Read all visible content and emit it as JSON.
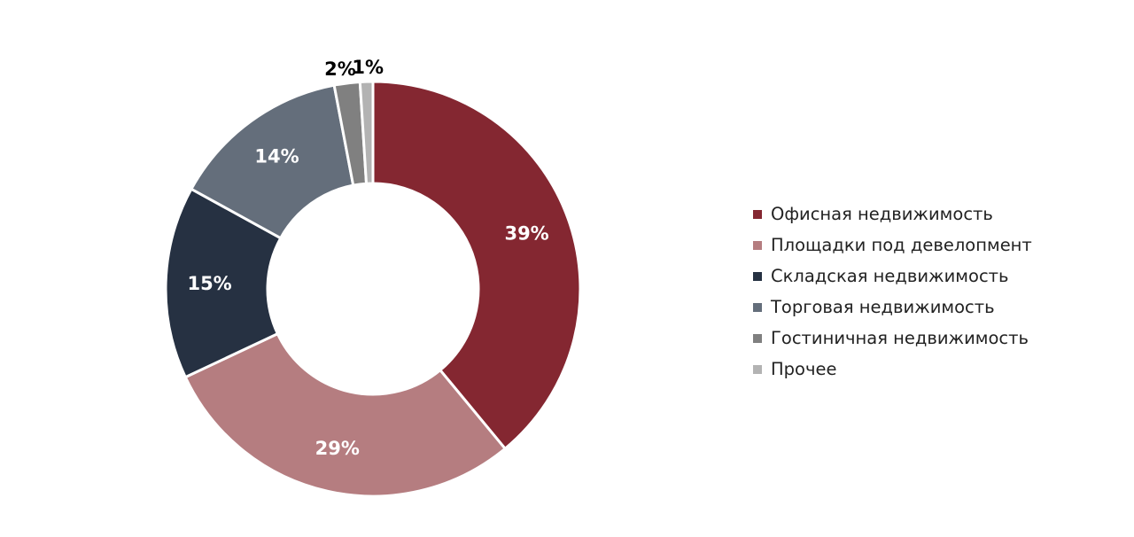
{
  "chart_data": {
    "type": "pie",
    "donut": true,
    "legend_position": "right",
    "slices": [
      {
        "label": "Офисная недвижимость",
        "value": 39,
        "value_label": "39%",
        "color": "#842731"
      },
      {
        "label": "Площадки под девелопмент",
        "value": 29,
        "value_label": "29%",
        "color": "#b57d80"
      },
      {
        "label": "Складская недвижимость",
        "value": 15,
        "value_label": "15%",
        "color": "#263142"
      },
      {
        "label": "Торговая недвижимость",
        "value": 14,
        "value_label": "14%",
        "color": "#646e7b"
      },
      {
        "label": "Гостиничная недвижимость",
        "value": 2,
        "value_label": "2%",
        "color": "#808080"
      },
      {
        "label": "Прочее",
        "value": 1,
        "value_label": "1%",
        "color": "#b3b3b3"
      }
    ]
  },
  "colors": {
    "inside_label": "#ffffff",
    "outside_label": "#000000",
    "slice_border": "#ffffff"
  }
}
